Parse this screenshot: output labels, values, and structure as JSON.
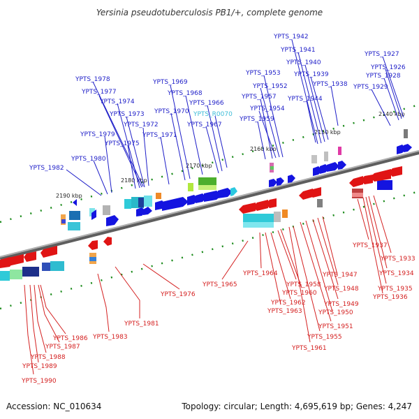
{
  "title": "Yersinia pseudotuberculosis PB1/+, complete genome",
  "footer": {
    "accession": "Accession: NC_010634",
    "topology": "Topology: circular; Length: 4,695,619 bp; Genes: 4,247"
  },
  "scale_labels": [
    "2190 kbp",
    "2180 kbp",
    "2170 kbp",
    "2160 kbp",
    "2150 kbp",
    "2140 kbp"
  ],
  "colors": {
    "forward_label": "#1e1ec8",
    "reverse_label": "#d42020",
    "highlight_label": "#3dbcd8",
    "backbone": "#7a7a7a",
    "tick": "#1a8a1a"
  },
  "forward_genes": [
    "YPTS_1982",
    "YPTS_1980",
    "YPTS_1979",
    "YPTS_1975",
    "YPTS_1971",
    "YPTS_1972",
    "YPTS_1973",
    "YPTS_1974",
    "YPTS_1977",
    "YPTS_1978",
    "YPTS_1970",
    "YPTS_1969",
    "YPTS_1968",
    "YPTS_1967",
    "YPTS_1966",
    "YPTS_R0070",
    "YPTS_1959",
    "YPTS_1954",
    "YPTS_1957",
    "YPTS_1952",
    "YPTS_1953",
    "YPTS_1944",
    "YPTS_1938",
    "YPTS_1939",
    "YPTS_1940",
    "YPTS_1941",
    "YPTS_1942",
    "YPTS_1929",
    "YPTS_1928",
    "YPTS_1926",
    "YPTS_1927"
  ],
  "reverse_genes": [
    "YPTS_1976",
    "YPTS_1981",
    "YPTS_1983",
    "YPTS_1986",
    "YPTS_1987",
    "YPTS_1988",
    "YPTS_1989",
    "YPTS_1990",
    "YPTS_1965",
    "YPTS_1964",
    "YPTS_1963",
    "YPTS_1962",
    "YPTS_1960",
    "YPTS_1958",
    "YPTS_1961",
    "YPTS_1955",
    "YPTS_1951",
    "YPTS_1950",
    "YPTS_1949",
    "YPTS_1948",
    "YPTS_1947",
    "YPTS_1937",
    "YPTS_1933",
    "YPTS_1934",
    "YPTS_1935",
    "YPTS_1936"
  ]
}
